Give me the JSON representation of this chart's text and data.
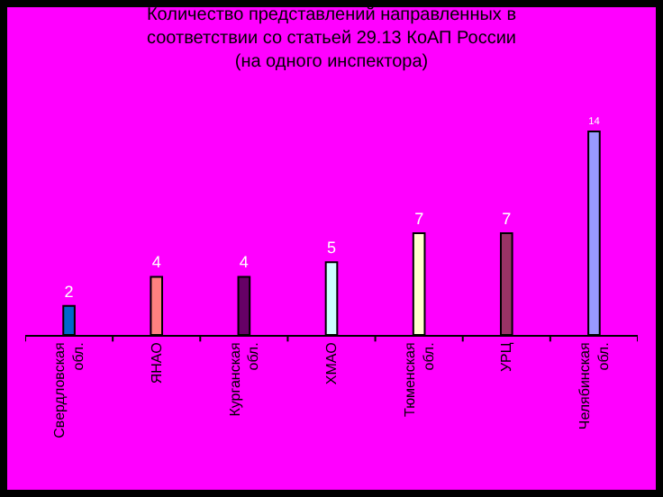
{
  "chart_data": {
    "type": "bar",
    "title": "Количество представлений направленных в\nсоответствии со статьей 29.13 КоАП России\n(на одного инспектора)",
    "categories": [
      "Свердловская обл.",
      "ЯНАО",
      "Курганская обл.",
      "ХМАО",
      "Тюменская обл.",
      "УРЦ",
      "Челябинская обл."
    ],
    "values": [
      2,
      4,
      4,
      5,
      7,
      7,
      14
    ],
    "colors": [
      "#0066cc",
      "#ff8080",
      "#660066",
      "#ccffff",
      "#ffffcc",
      "#993366",
      "#9999ff"
    ],
    "data_labels": true,
    "grid": false,
    "legend": false
  }
}
